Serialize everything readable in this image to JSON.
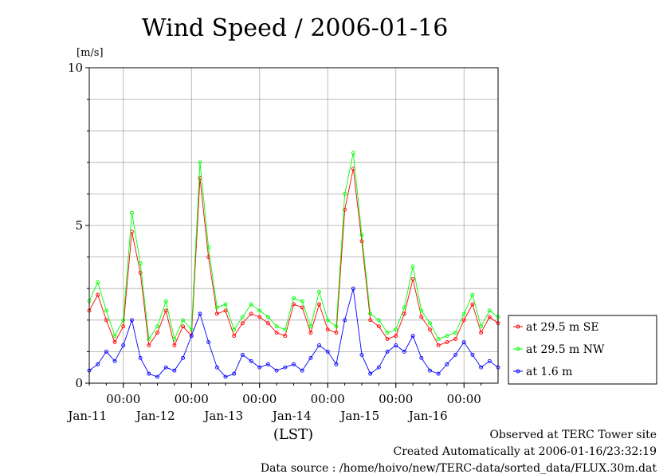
{
  "chart_data": {
    "type": "line",
    "title": "Wind Speed / 2006-01-16",
    "ylabel": "[m/s]",
    "xlabel": "(LST)",
    "ylim": [
      0,
      10
    ],
    "yticks": [
      "0",
      "5",
      "10"
    ],
    "xlim": [
      "2006-01-10T12:00",
      "2006-01-16T12:00"
    ],
    "x_time_ticks": [
      "00:00",
      "00:00",
      "00:00",
      "00:00",
      "00:00",
      "00:00"
    ],
    "x_date_ticks": [
      "Jan-11",
      "Jan-12",
      "Jan-13",
      "Jan-14",
      "Jan-15",
      "Jan-16"
    ],
    "grid": true,
    "legend_position": "right-lower",
    "x": [
      "2006-01-10T12:00",
      "2006-01-10T15:00",
      "2006-01-10T18:00",
      "2006-01-10T21:00",
      "2006-01-11T00:00",
      "2006-01-11T03:00",
      "2006-01-11T06:00",
      "2006-01-11T09:00",
      "2006-01-11T12:00",
      "2006-01-11T15:00",
      "2006-01-11T18:00",
      "2006-01-11T21:00",
      "2006-01-12T00:00",
      "2006-01-12T03:00",
      "2006-01-12T06:00",
      "2006-01-12T09:00",
      "2006-01-12T12:00",
      "2006-01-12T15:00",
      "2006-01-12T18:00",
      "2006-01-12T21:00",
      "2006-01-13T00:00",
      "2006-01-13T03:00",
      "2006-01-13T06:00",
      "2006-01-13T09:00",
      "2006-01-13T12:00",
      "2006-01-13T15:00",
      "2006-01-13T18:00",
      "2006-01-13T21:00",
      "2006-01-14T00:00",
      "2006-01-14T03:00",
      "2006-01-14T06:00",
      "2006-01-14T09:00",
      "2006-01-14T12:00",
      "2006-01-14T15:00",
      "2006-01-14T18:00",
      "2006-01-14T21:00",
      "2006-01-15T00:00",
      "2006-01-15T03:00",
      "2006-01-15T06:00",
      "2006-01-15T09:00",
      "2006-01-15T12:00",
      "2006-01-15T15:00",
      "2006-01-15T18:00",
      "2006-01-15T21:00",
      "2006-01-16T00:00",
      "2006-01-16T03:00",
      "2006-01-16T06:00",
      "2006-01-16T09:00",
      "2006-01-16T12:00"
    ],
    "series": [
      {
        "name": "at 29.5 m SE",
        "color": "#ff0000",
        "values": [
          2.3,
          2.8,
          2.0,
          1.3,
          1.8,
          4.8,
          3.5,
          1.2,
          1.6,
          2.3,
          1.2,
          1.8,
          1.5,
          6.5,
          4.0,
          2.2,
          2.3,
          1.5,
          1.9,
          2.2,
          2.1,
          1.9,
          1.6,
          1.5,
          2.5,
          2.4,
          1.6,
          2.5,
          1.7,
          1.6,
          5.5,
          6.8,
          4.5,
          2.0,
          1.8,
          1.4,
          1.5,
          2.2,
          3.3,
          2.1,
          1.7,
          1.2,
          1.3,
          1.4,
          2.0,
          2.5,
          1.6,
          2.1,
          1.9
        ]
      },
      {
        "name": "at 29.5 m NW",
        "color": "#00ff00",
        "values": [
          2.6,
          3.2,
          2.3,
          1.5,
          2.0,
          5.4,
          3.8,
          1.4,
          1.8,
          2.6,
          1.4,
          2.0,
          1.7,
          7.0,
          4.3,
          2.4,
          2.5,
          1.7,
          2.1,
          2.5,
          2.3,
          2.1,
          1.8,
          1.7,
          2.7,
          2.6,
          1.8,
          2.9,
          2.0,
          1.8,
          6.0,
          7.3,
          4.7,
          2.2,
          2.0,
          1.6,
          1.7,
          2.4,
          3.7,
          2.3,
          1.9,
          1.4,
          1.5,
          1.6,
          2.2,
          2.8,
          1.8,
          2.3,
          2.1
        ]
      },
      {
        "name": "at 1.6 m",
        "color": "#0000ff",
        "values": [
          0.4,
          0.6,
          1.0,
          0.7,
          1.2,
          2.0,
          0.8,
          0.3,
          0.2,
          0.5,
          0.4,
          0.8,
          1.5,
          2.2,
          1.3,
          0.5,
          0.2,
          0.3,
          0.9,
          0.7,
          0.5,
          0.6,
          0.4,
          0.5,
          0.6,
          0.4,
          0.8,
          1.2,
          1.0,
          0.6,
          2.0,
          3.0,
          0.9,
          0.3,
          0.5,
          1.0,
          1.2,
          1.0,
          1.5,
          0.8,
          0.4,
          0.3,
          0.6,
          0.9,
          1.3,
          0.9,
          0.5,
          0.7,
          0.5
        ]
      }
    ]
  },
  "footer": {
    "line1": "Observed at TERC Tower site",
    "line2": "Created Automatically at 2006-01-16/23:32:19",
    "line3": "Data source : /home/hoivo/new/TERC-data/sorted_data/FLUX.30m.dat"
  }
}
